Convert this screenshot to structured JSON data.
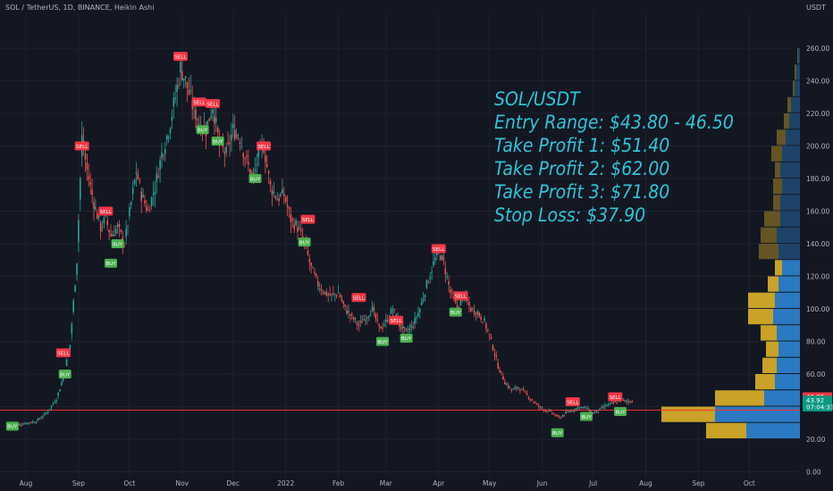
{
  "header": {
    "symbol_line": "SOL / TetherUS, 1D, BINANCE, Heikin Ashi",
    "currency": "USDT"
  },
  "annotation": {
    "lines": [
      "SOL/USDT",
      "Entry Range: $43.80 - 46.50",
      "Take Profit 1: $51.40",
      "Take Profit 2: $62.00",
      "Take Profit 3: $71.80",
      "Stop Loss: $37.90"
    ],
    "color": "#2ec4d6"
  },
  "chart_data": {
    "type": "candlestick",
    "chart_style": "Heikin Ashi",
    "interval": "1D",
    "exchange": "BINANCE",
    "ylim": [
      0,
      280
    ],
    "y_ticks": [
      0,
      20,
      40,
      60,
      80,
      100,
      120,
      140,
      160,
      180,
      200,
      220,
      240,
      260
    ],
    "y_tick_labels": [
      "0.00",
      "20.00",
      "40.00",
      "60.00",
      "80.00",
      "100.00",
      "120.00",
      "140.00",
      "160.00",
      "180.00",
      "200.00",
      "220.00",
      "240.00",
      "260.00"
    ],
    "x_tick_labels": [
      "Aug",
      "Sep",
      "Oct",
      "Nov",
      "Dec",
      "2022",
      "Feb",
      "Mar",
      "Apr",
      "May",
      "Jun",
      "Jul",
      "Aug",
      "Sep",
      "Oct"
    ],
    "x_tick_days": [
      0,
      31,
      61,
      92,
      122,
      153,
      184,
      212,
      243,
      273,
      304,
      334,
      365,
      396,
      426
    ],
    "price_path": [
      [
        -8,
        28
      ],
      [
        0,
        30
      ],
      [
        6,
        31
      ],
      [
        12,
        36
      ],
      [
        18,
        45
      ],
      [
        22,
        58
      ],
      [
        26,
        78
      ],
      [
        30,
        130
      ],
      [
        33,
        205
      ],
      [
        36,
        185
      ],
      [
        40,
        165
      ],
      [
        44,
        150
      ],
      [
        47,
        155
      ],
      [
        50,
        145
      ],
      [
        54,
        150
      ],
      [
        58,
        140
      ],
      [
        62,
        165
      ],
      [
        65,
        185
      ],
      [
        68,
        170
      ],
      [
        72,
        160
      ],
      [
        76,
        175
      ],
      [
        80,
        195
      ],
      [
        84,
        210
      ],
      [
        88,
        230
      ],
      [
        91,
        248
      ],
      [
        94,
        240
      ],
      [
        98,
        225
      ],
      [
        102,
        215
      ],
      [
        106,
        210
      ],
      [
        110,
        225
      ],
      [
        114,
        200
      ],
      [
        118,
        195
      ],
      [
        122,
        210
      ],
      [
        126,
        205
      ],
      [
        130,
        190
      ],
      [
        134,
        180
      ],
      [
        137,
        195
      ],
      [
        140,
        200
      ],
      [
        144,
        175
      ],
      [
        148,
        168
      ],
      [
        152,
        170
      ],
      [
        156,
        155
      ],
      [
        160,
        150
      ],
      [
        164,
        140
      ],
      [
        168,
        125
      ],
      [
        172,
        115
      ],
      [
        176,
        110
      ],
      [
        180,
        108
      ],
      [
        184,
        110
      ],
      [
        188,
        100
      ],
      [
        192,
        95
      ],
      [
        196,
        90
      ],
      [
        200,
        95
      ],
      [
        204,
        100
      ],
      [
        208,
        88
      ],
      [
        212,
        92
      ],
      [
        216,
        100
      ],
      [
        220,
        90
      ],
      [
        224,
        85
      ],
      [
        228,
        90
      ],
      [
        232,
        100
      ],
      [
        236,
        115
      ],
      [
        240,
        128
      ],
      [
        243,
        135
      ],
      [
        246,
        128
      ],
      [
        250,
        110
      ],
      [
        254,
        100
      ],
      [
        258,
        108
      ],
      [
        262,
        100
      ],
      [
        266,
        98
      ],
      [
        270,
        92
      ],
      [
        274,
        80
      ],
      [
        278,
        65
      ],
      [
        282,
        55
      ],
      [
        286,
        50
      ],
      [
        290,
        52
      ],
      [
        294,
        48
      ],
      [
        298,
        44
      ],
      [
        302,
        40
      ],
      [
        306,
        38
      ],
      [
        310,
        36
      ],
      [
        314,
        33
      ],
      [
        318,
        36
      ],
      [
        322,
        38
      ],
      [
        326,
        40
      ],
      [
        330,
        39
      ],
      [
        334,
        36
      ],
      [
        338,
        38
      ],
      [
        342,
        41
      ],
      [
        346,
        42
      ],
      [
        350,
        44
      ],
      [
        354,
        43
      ],
      [
        357,
        44
      ]
    ],
    "signals": [
      {
        "label": "BUY",
        "day": -8,
        "price": 28
      },
      {
        "label": "SELL",
        "day": 22,
        "price": 73
      },
      {
        "label": "BUY",
        "day": 23,
        "price": 60
      },
      {
        "label": "SELL",
        "day": 33,
        "price": 200
      },
      {
        "label": "SELL",
        "day": 47,
        "price": 160
      },
      {
        "label": "BUY",
        "day": 50,
        "price": 128
      },
      {
        "label": "BUY",
        "day": 54,
        "price": 140
      },
      {
        "label": "SELL",
        "day": 91,
        "price": 255
      },
      {
        "label": "SELL",
        "day": 102,
        "price": 227
      },
      {
        "label": "BUY",
        "day": 104,
        "price": 210
      },
      {
        "label": "SELL",
        "day": 110,
        "price": 226
      },
      {
        "label": "BUY",
        "day": 113,
        "price": 203
      },
      {
        "label": "SELL",
        "day": 140,
        "price": 200
      },
      {
        "label": "BUY",
        "day": 135,
        "price": 180
      },
      {
        "label": "SELL",
        "day": 166,
        "price": 155
      },
      {
        "label": "BUY",
        "day": 164,
        "price": 141
      },
      {
        "label": "SELL",
        "day": 196,
        "price": 107
      },
      {
        "label": "BUY",
        "day": 210,
        "price": 80
      },
      {
        "label": "SELL",
        "day": 218,
        "price": 93
      },
      {
        "label": "BUY",
        "day": 224,
        "price": 82
      },
      {
        "label": "SELL",
        "day": 243,
        "price": 137
      },
      {
        "label": "BUY",
        "day": 253,
        "price": 98
      },
      {
        "label": "SELL",
        "day": 256,
        "price": 108
      },
      {
        "label": "SELL",
        "day": 322,
        "price": 43
      },
      {
        "label": "BUY",
        "day": 313,
        "price": 24
      },
      {
        "label": "BUY",
        "day": 330,
        "price": 34
      },
      {
        "label": "SELL",
        "day": 347,
        "price": 46
      },
      {
        "label": "BUY",
        "day": 350,
        "price": 37
      }
    ],
    "price_labels": [
      {
        "text": "46.02",
        "value": 46.02,
        "color": "#f23645"
      },
      {
        "text": "43.92",
        "value": 43.92,
        "color": "#089981"
      },
      {
        "text": "07:04:33",
        "value": 39.8,
        "color": "#089981"
      }
    ],
    "horizontal_line": 37.9,
    "volume_profile": [
      {
        "low": 20,
        "high": 30,
        "up": 45,
        "down": 60
      },
      {
        "low": 30,
        "high": 40,
        "up": 60,
        "down": 95
      },
      {
        "low": 40,
        "high": 50,
        "up": 55,
        "down": 40
      },
      {
        "low": 50,
        "high": 60,
        "up": 22,
        "down": 28
      },
      {
        "low": 60,
        "high": 70,
        "up": 16,
        "down": 26
      },
      {
        "low": 70,
        "high": 80,
        "up": 14,
        "down": 24
      },
      {
        "low": 80,
        "high": 90,
        "up": 18,
        "down": 26
      },
      {
        "low": 90,
        "high": 100,
        "up": 28,
        "down": 30
      },
      {
        "low": 100,
        "high": 110,
        "up": 30,
        "down": 28
      },
      {
        "low": 110,
        "high": 120,
        "up": 12,
        "down": 24
      },
      {
        "low": 120,
        "high": 130,
        "up": 8,
        "down": 20
      },
      {
        "low": 130,
        "high": 140,
        "up": 22,
        "down": 24
      },
      {
        "low": 140,
        "high": 150,
        "up": 18,
        "down": 26
      },
      {
        "low": 150,
        "high": 160,
        "up": 18,
        "down": 22
      },
      {
        "low": 160,
        "high": 170,
        "up": 8,
        "down": 22
      },
      {
        "low": 170,
        "high": 180,
        "up": 10,
        "down": 20
      },
      {
        "low": 180,
        "high": 190,
        "up": 6,
        "down": 22
      },
      {
        "low": 190,
        "high": 200,
        "up": 12,
        "down": 20
      },
      {
        "low": 200,
        "high": 210,
        "up": 10,
        "down": 16
      },
      {
        "low": 210,
        "high": 220,
        "up": 6,
        "down": 12
      },
      {
        "low": 220,
        "high": 230,
        "up": 4,
        "down": 10
      },
      {
        "low": 230,
        "high": 240,
        "up": 2,
        "down": 6
      },
      {
        "low": 240,
        "high": 250,
        "up": 2,
        "down": 4
      },
      {
        "low": 250,
        "high": 260,
        "up": 1,
        "down": 2
      }
    ],
    "colors": {
      "bull": "#26a69a",
      "bear": "#ef5350",
      "sell_tag": "#f23645",
      "buy_tag": "#4caf50",
      "profile_up": "#c9a227",
      "profile_down": "#2b79c2",
      "hline": "#ff2e2e",
      "grid": "#1e2230",
      "axis_text": "#b2b5be"
    }
  }
}
